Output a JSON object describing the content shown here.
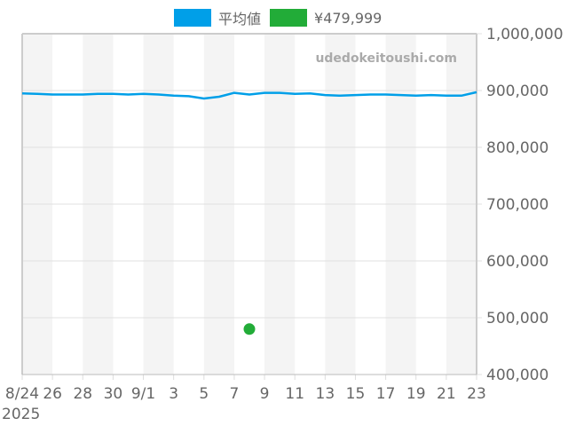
{
  "legend": [
    {
      "label": "平均値",
      "color": "#009FE8"
    },
    {
      "label": "¥479,999",
      "color": "#22AC38"
    }
  ],
  "watermark": "udedokeitoushi.com",
  "chart_data": {
    "type": "line",
    "title": "",
    "xlabel": "",
    "ylabel": "",
    "ylim": [
      400000,
      1000000
    ],
    "y_ticks": [
      "1,000,000",
      "900,000",
      "800,000",
      "700,000",
      "600,000",
      "500,000",
      "400,000"
    ],
    "y_tick_values": [
      1000000,
      900000,
      800000,
      700000,
      600000,
      500000,
      400000
    ],
    "x_tick_labels": [
      "8/24",
      "26",
      "28",
      "30",
      "9/1",
      "3",
      "5",
      "7",
      "9",
      "11",
      "13",
      "15",
      "17",
      "19",
      "21",
      "23"
    ],
    "x_year_label": "2025",
    "grid": true,
    "alternating_bands": true,
    "y_axis_position": "right",
    "legend_position": "top",
    "x": [
      "8/24",
      "8/25",
      "8/26",
      "8/27",
      "8/28",
      "8/29",
      "8/30",
      "8/31",
      "9/1",
      "9/2",
      "9/3",
      "9/4",
      "9/5",
      "9/6",
      "9/7",
      "9/8",
      "9/9",
      "9/10",
      "9/11",
      "9/12",
      "9/13",
      "9/14",
      "9/15",
      "9/16",
      "9/17",
      "9/18",
      "9/19",
      "9/20",
      "9/21",
      "9/22",
      "9/23"
    ],
    "series": [
      {
        "name": "平均値",
        "color": "#009FE8",
        "type": "line",
        "values": [
          895000,
          894000,
          893000,
          893000,
          893000,
          894000,
          894000,
          893000,
          894000,
          893000,
          891000,
          890000,
          886000,
          889000,
          896000,
          893000,
          896000,
          896000,
          894000,
          895000,
          892000,
          891000,
          892000,
          893000,
          893000,
          892000,
          891000,
          892000,
          891000,
          891000,
          897000
        ]
      },
      {
        "name": "¥479,999",
        "color": "#22AC38",
        "type": "scatter",
        "points": [
          {
            "x": "9/8",
            "y": 479999
          }
        ]
      }
    ]
  }
}
